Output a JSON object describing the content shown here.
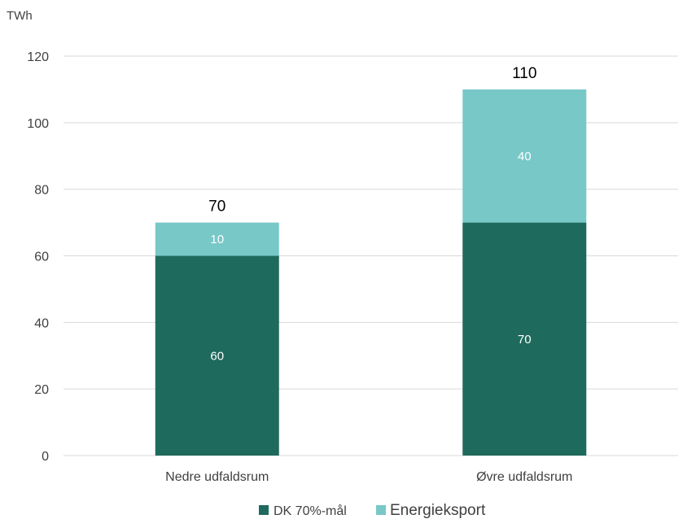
{
  "chart_data": {
    "type": "bar",
    "stacked": true,
    "unit_label": "TWh",
    "categories": [
      "Nedre udfaldsrum",
      "Øvre udfaldsrum"
    ],
    "series": [
      {
        "name": "DK 70%-mål",
        "values": [
          60,
          70
        ],
        "color": "#1e6a5c"
      },
      {
        "name": "Energieksport",
        "values": [
          10,
          40
        ],
        "color": "#78c8c8"
      }
    ],
    "totals": [
      70,
      110
    ],
    "ylim": [
      0,
      120
    ],
    "yticks": [
      0,
      20,
      40,
      60,
      80,
      100,
      120
    ],
    "grid": true,
    "legend": "bottom-center"
  }
}
